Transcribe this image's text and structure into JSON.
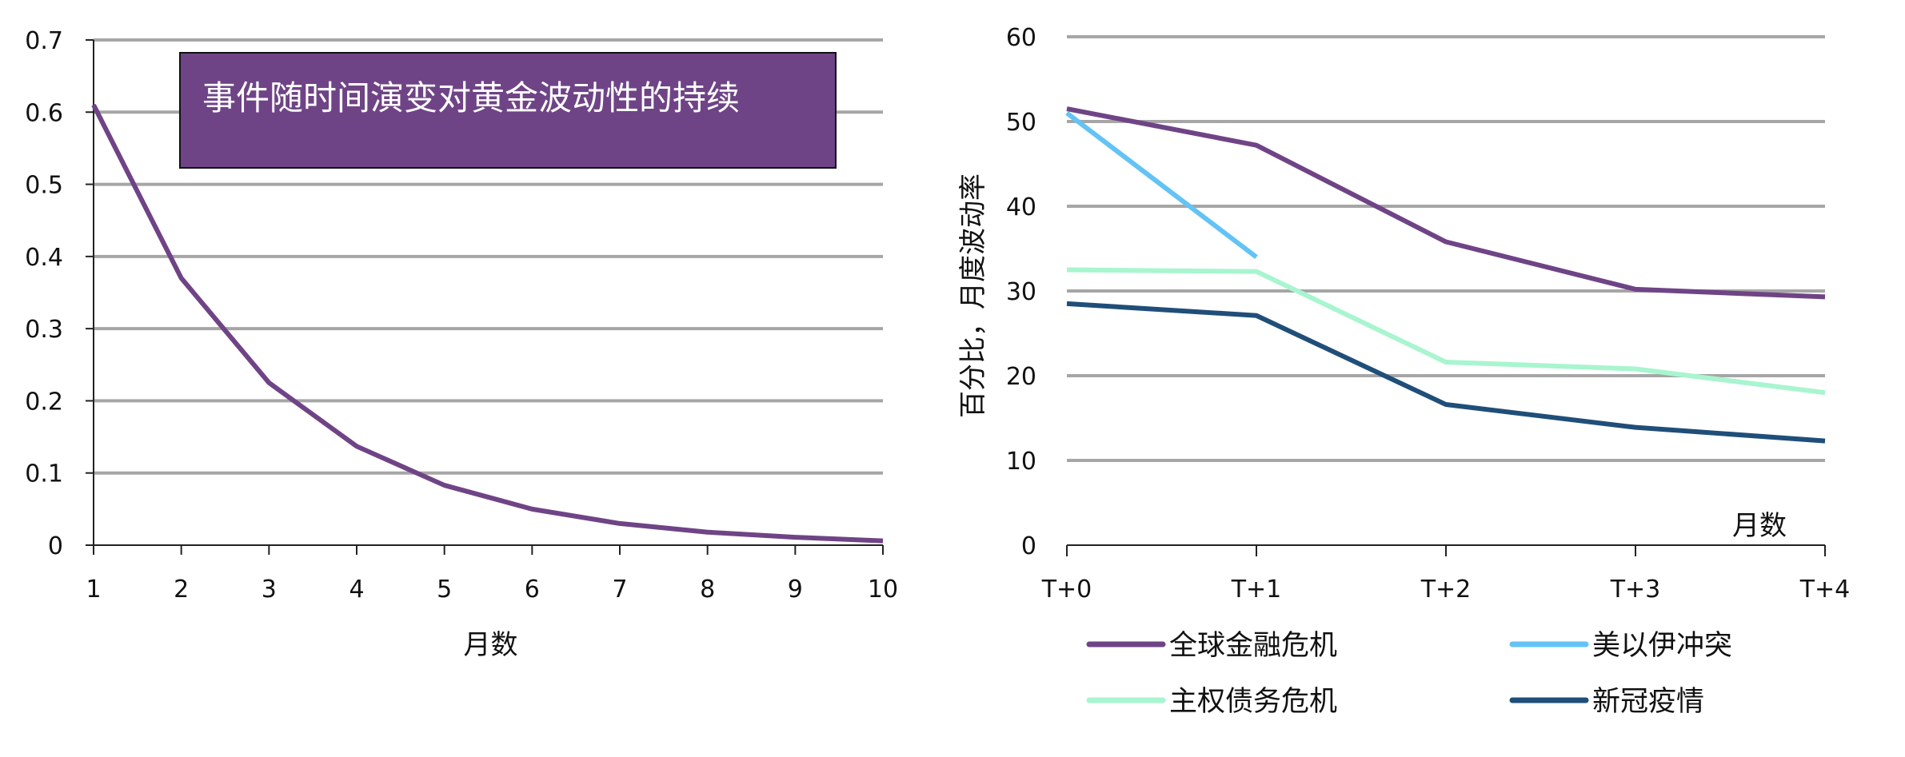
{
  "chart_data": [
    {
      "type": "line",
      "title": "事件随时间演变对黄金波动性的持续",
      "xlabel": "月数",
      "ylabel": "",
      "x": [
        1,
        2,
        3,
        4,
        5,
        6,
        7,
        8,
        9,
        10
      ],
      "xticks": [
        "1",
        "2",
        "3",
        "4",
        "5",
        "6",
        "7",
        "8",
        "9",
        "10"
      ],
      "yticks": [
        "0",
        "0.1",
        "0.2",
        "0.3",
        "0.4",
        "0.5",
        "0.6",
        "0.7"
      ],
      "ylim": [
        0,
        0.7
      ],
      "grid": true,
      "series": [
        {
          "values": [
            0.61,
            0.37,
            0.225,
            0.137,
            0.083,
            0.05,
            0.03,
            0.018,
            0.011,
            0.006
          ],
          "color": "#6f4486"
        }
      ],
      "title_box_color": "#6f4486"
    },
    {
      "type": "line",
      "xlabel": "月数",
      "ylabel": "百分比，月度波动率",
      "categories": [
        "T+0",
        "T+1",
        "T+2",
        "T+3",
        "T+4"
      ],
      "yticks": [
        "0",
        "10",
        "20",
        "30",
        "40",
        "50",
        "60"
      ],
      "ylim": [
        0,
        60
      ],
      "grid": true,
      "legend": "bottom",
      "series": [
        {
          "name": "全球金融危机",
          "values": [
            51.5,
            47.2,
            35.8,
            30.2,
            29.3
          ],
          "color": "#6f4486"
        },
        {
          "name": "美以伊冲突",
          "values": [
            51,
            34,
            null,
            null,
            null
          ],
          "color": "#63c3f5"
        },
        {
          "name": "主权债务危机",
          "values": [
            32.5,
            32.3,
            21.6,
            20.8,
            18
          ],
          "color": "#a8f5cf"
        },
        {
          "name": "新冠疫情",
          "values": [
            28.5,
            27.1,
            16.6,
            13.9,
            12.3
          ],
          "color": "#1f4e79"
        }
      ]
    }
  ]
}
